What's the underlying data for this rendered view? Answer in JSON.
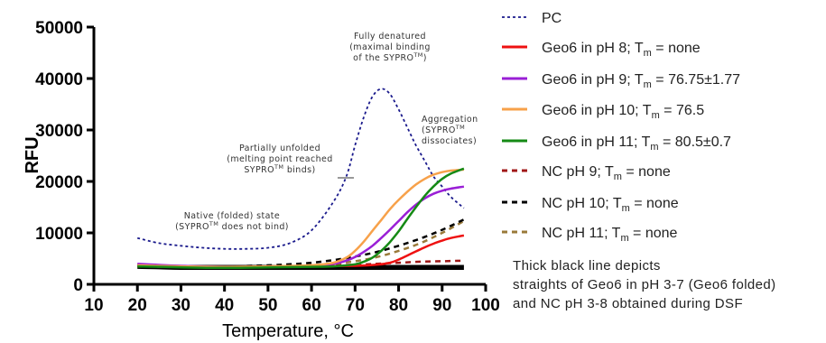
{
  "chart_data": {
    "type": "line",
    "xlabel": "Temperature, °C",
    "ylabel": "RFU",
    "xlim": [
      10,
      100
    ],
    "ylim": [
      0,
      50000
    ],
    "xticks": [
      "10",
      "20",
      "30",
      "40",
      "50",
      "60",
      "70",
      "80",
      "90",
      "100"
    ],
    "yticks": [
      "0",
      "10000",
      "20000",
      "30000",
      "40000",
      "50000"
    ],
    "legend_position": "right",
    "series": [
      {
        "name": "PC",
        "legend_label": "PC",
        "color": "#1a1a8c",
        "style": "dotted",
        "width": 1.8,
        "x": [
          20,
          25,
          30,
          35,
          40,
          45,
          50,
          55,
          60,
          65,
          68,
          70,
          72,
          74,
          76,
          78,
          80,
          82,
          84,
          86,
          88,
          90,
          92,
          95
        ],
        "y": [
          9000,
          8000,
          7500,
          7100,
          6900,
          6900,
          7100,
          8000,
          10500,
          16000,
          21000,
          27000,
          32500,
          36500,
          38000,
          37000,
          34000,
          30500,
          27000,
          24000,
          21000,
          19000,
          17000,
          14800
        ]
      },
      {
        "name": "Geo6 in pH 8",
        "legend_main": "Geo6 in pH 8; T",
        "legend_sub": "m",
        "legend_tail": " = none",
        "color": "#ee1111",
        "style": "solid",
        "width": 2.5,
        "x": [
          20,
          30,
          40,
          50,
          60,
          70,
          75,
          78,
          80,
          82,
          84,
          86,
          88,
          90,
          92,
          95
        ],
        "y": [
          3600,
          3400,
          3300,
          3400,
          3500,
          3600,
          3800,
          4200,
          4800,
          5600,
          6400,
          7200,
          7900,
          8500,
          9000,
          9500
        ]
      },
      {
        "name": "Geo6 in pH 9",
        "legend_main": "Geo6 in pH 9; T",
        "legend_sub": "m",
        "legend_tail": " = 76.75±1.77",
        "color": "#9a1fd6",
        "style": "solid",
        "width": 2.5,
        "x": [
          20,
          30,
          40,
          50,
          60,
          65,
          68,
          70,
          72,
          74,
          76,
          78,
          80,
          82,
          84,
          86,
          88,
          90,
          92,
          95
        ],
        "y": [
          4000,
          3600,
          3400,
          3400,
          3600,
          4000,
          4600,
          5300,
          6300,
          7500,
          9000,
          10600,
          12300,
          14000,
          15500,
          16700,
          17600,
          18200,
          18600,
          19000
        ]
      },
      {
        "name": "Geo6 in pH 10",
        "legend_main": "Geo6 in pH 10; T",
        "legend_sub": "m",
        "legend_tail": " = 76.5",
        "color": "#f7a14a",
        "style": "solid",
        "width": 2.5,
        "x": [
          20,
          30,
          40,
          50,
          60,
          65,
          68,
          70,
          72,
          74,
          76,
          78,
          80,
          82,
          84,
          86,
          88,
          90,
          92,
          95
        ],
        "y": [
          3700,
          3500,
          3400,
          3500,
          3700,
          4200,
          5200,
          6500,
          8300,
          10400,
          12500,
          14600,
          16400,
          18000,
          19400,
          20500,
          21300,
          21800,
          22100,
          22300
        ]
      },
      {
        "name": "Geo6 in pH 11",
        "legend_main": "Geo6 in pH 11; T",
        "legend_sub": "m",
        "legend_tail": " = 80.5±0.7",
        "color": "#158a15",
        "style": "solid",
        "width": 2.5,
        "x": [
          20,
          30,
          40,
          50,
          60,
          65,
          70,
          72,
          74,
          76,
          78,
          80,
          82,
          84,
          86,
          88,
          90,
          92,
          95
        ],
        "y": [
          3500,
          3300,
          3200,
          3300,
          3400,
          3500,
          3900,
          4400,
          5200,
          6500,
          8200,
          10300,
          12700,
          15000,
          17200,
          19000,
          20500,
          21500,
          22500
        ]
      },
      {
        "name": "NC pH 9",
        "legend_main": "NC pH 9; T",
        "legend_sub": "m",
        "legend_tail": " = none",
        "color": "#a01818",
        "style": "dashed",
        "width": 2.5,
        "x": [
          20,
          30,
          40,
          50,
          60,
          70,
          75,
          80,
          85,
          90,
          95
        ],
        "y": [
          3500,
          3400,
          3400,
          3500,
          3600,
          3800,
          4000,
          4200,
          4400,
          4500,
          4600
        ]
      },
      {
        "name": "NC pH 10",
        "legend_main": "NC pH 10; T",
        "legend_sub": "m",
        "legend_tail": " = none",
        "color": "#000000",
        "style": "dashed",
        "width": 2.5,
        "x": [
          20,
          30,
          40,
          50,
          55,
          60,
          65,
          70,
          75,
          80,
          85,
          90,
          95
        ],
        "y": [
          3600,
          3500,
          3500,
          3700,
          3900,
          4200,
          4700,
          5400,
          6300,
          7500,
          8900,
          10600,
          12600
        ]
      },
      {
        "name": "NC pH 11",
        "legend_main": "NC pH 11; T",
        "legend_sub": "m",
        "legend_tail": " = none",
        "color": "#9a7a3a",
        "style": "dashed",
        "width": 2.5,
        "x": [
          20,
          30,
          40,
          50,
          60,
          65,
          70,
          75,
          80,
          85,
          90,
          95
        ],
        "y": [
          3500,
          3400,
          3400,
          3500,
          3700,
          4000,
          4500,
          5300,
          6500,
          8000,
          10000,
          12300
        ]
      },
      {
        "name": "Thick black baseline",
        "color": "#000000",
        "style": "solid",
        "width": 5.5,
        "x": [
          20,
          25,
          30,
          40,
          50,
          60,
          70,
          80,
          90,
          95
        ],
        "y": [
          3500,
          3400,
          3300,
          3300,
          3300,
          3300,
          3300,
          3300,
          3300,
          3300
        ]
      }
    ],
    "annotations": [
      {
        "lines": [
          "Fully denatured",
          "(maximal binding",
          "of the SYPRO"
        ],
        "sup": "TM",
        "after_sup": ")",
        "anchor": "middle"
      },
      {
        "lines": [
          "Aggregation",
          "(SYPRO",
          "dissociates)"
        ],
        "sup": "TM",
        "sup_line": 1,
        "anchor": "start"
      },
      {
        "lines": [
          "Partially unfolded",
          "(melting point reached",
          "SYPRO"
        ],
        "sup": "TM",
        "after_sup": " binds)",
        "anchor": "middle"
      },
      {
        "lines": [
          "Native (folded) state",
          "(SYPRO"
        ],
        "sup": "TM",
        "after_sup": " does not bind)",
        "anchor": "middle"
      }
    ],
    "note": [
      "Thick black line depicts",
      "straights of Geo6 in pH 3-7 (Geo6 folded)",
      "and NC pH 3-8 obtained during DSF"
    ]
  }
}
